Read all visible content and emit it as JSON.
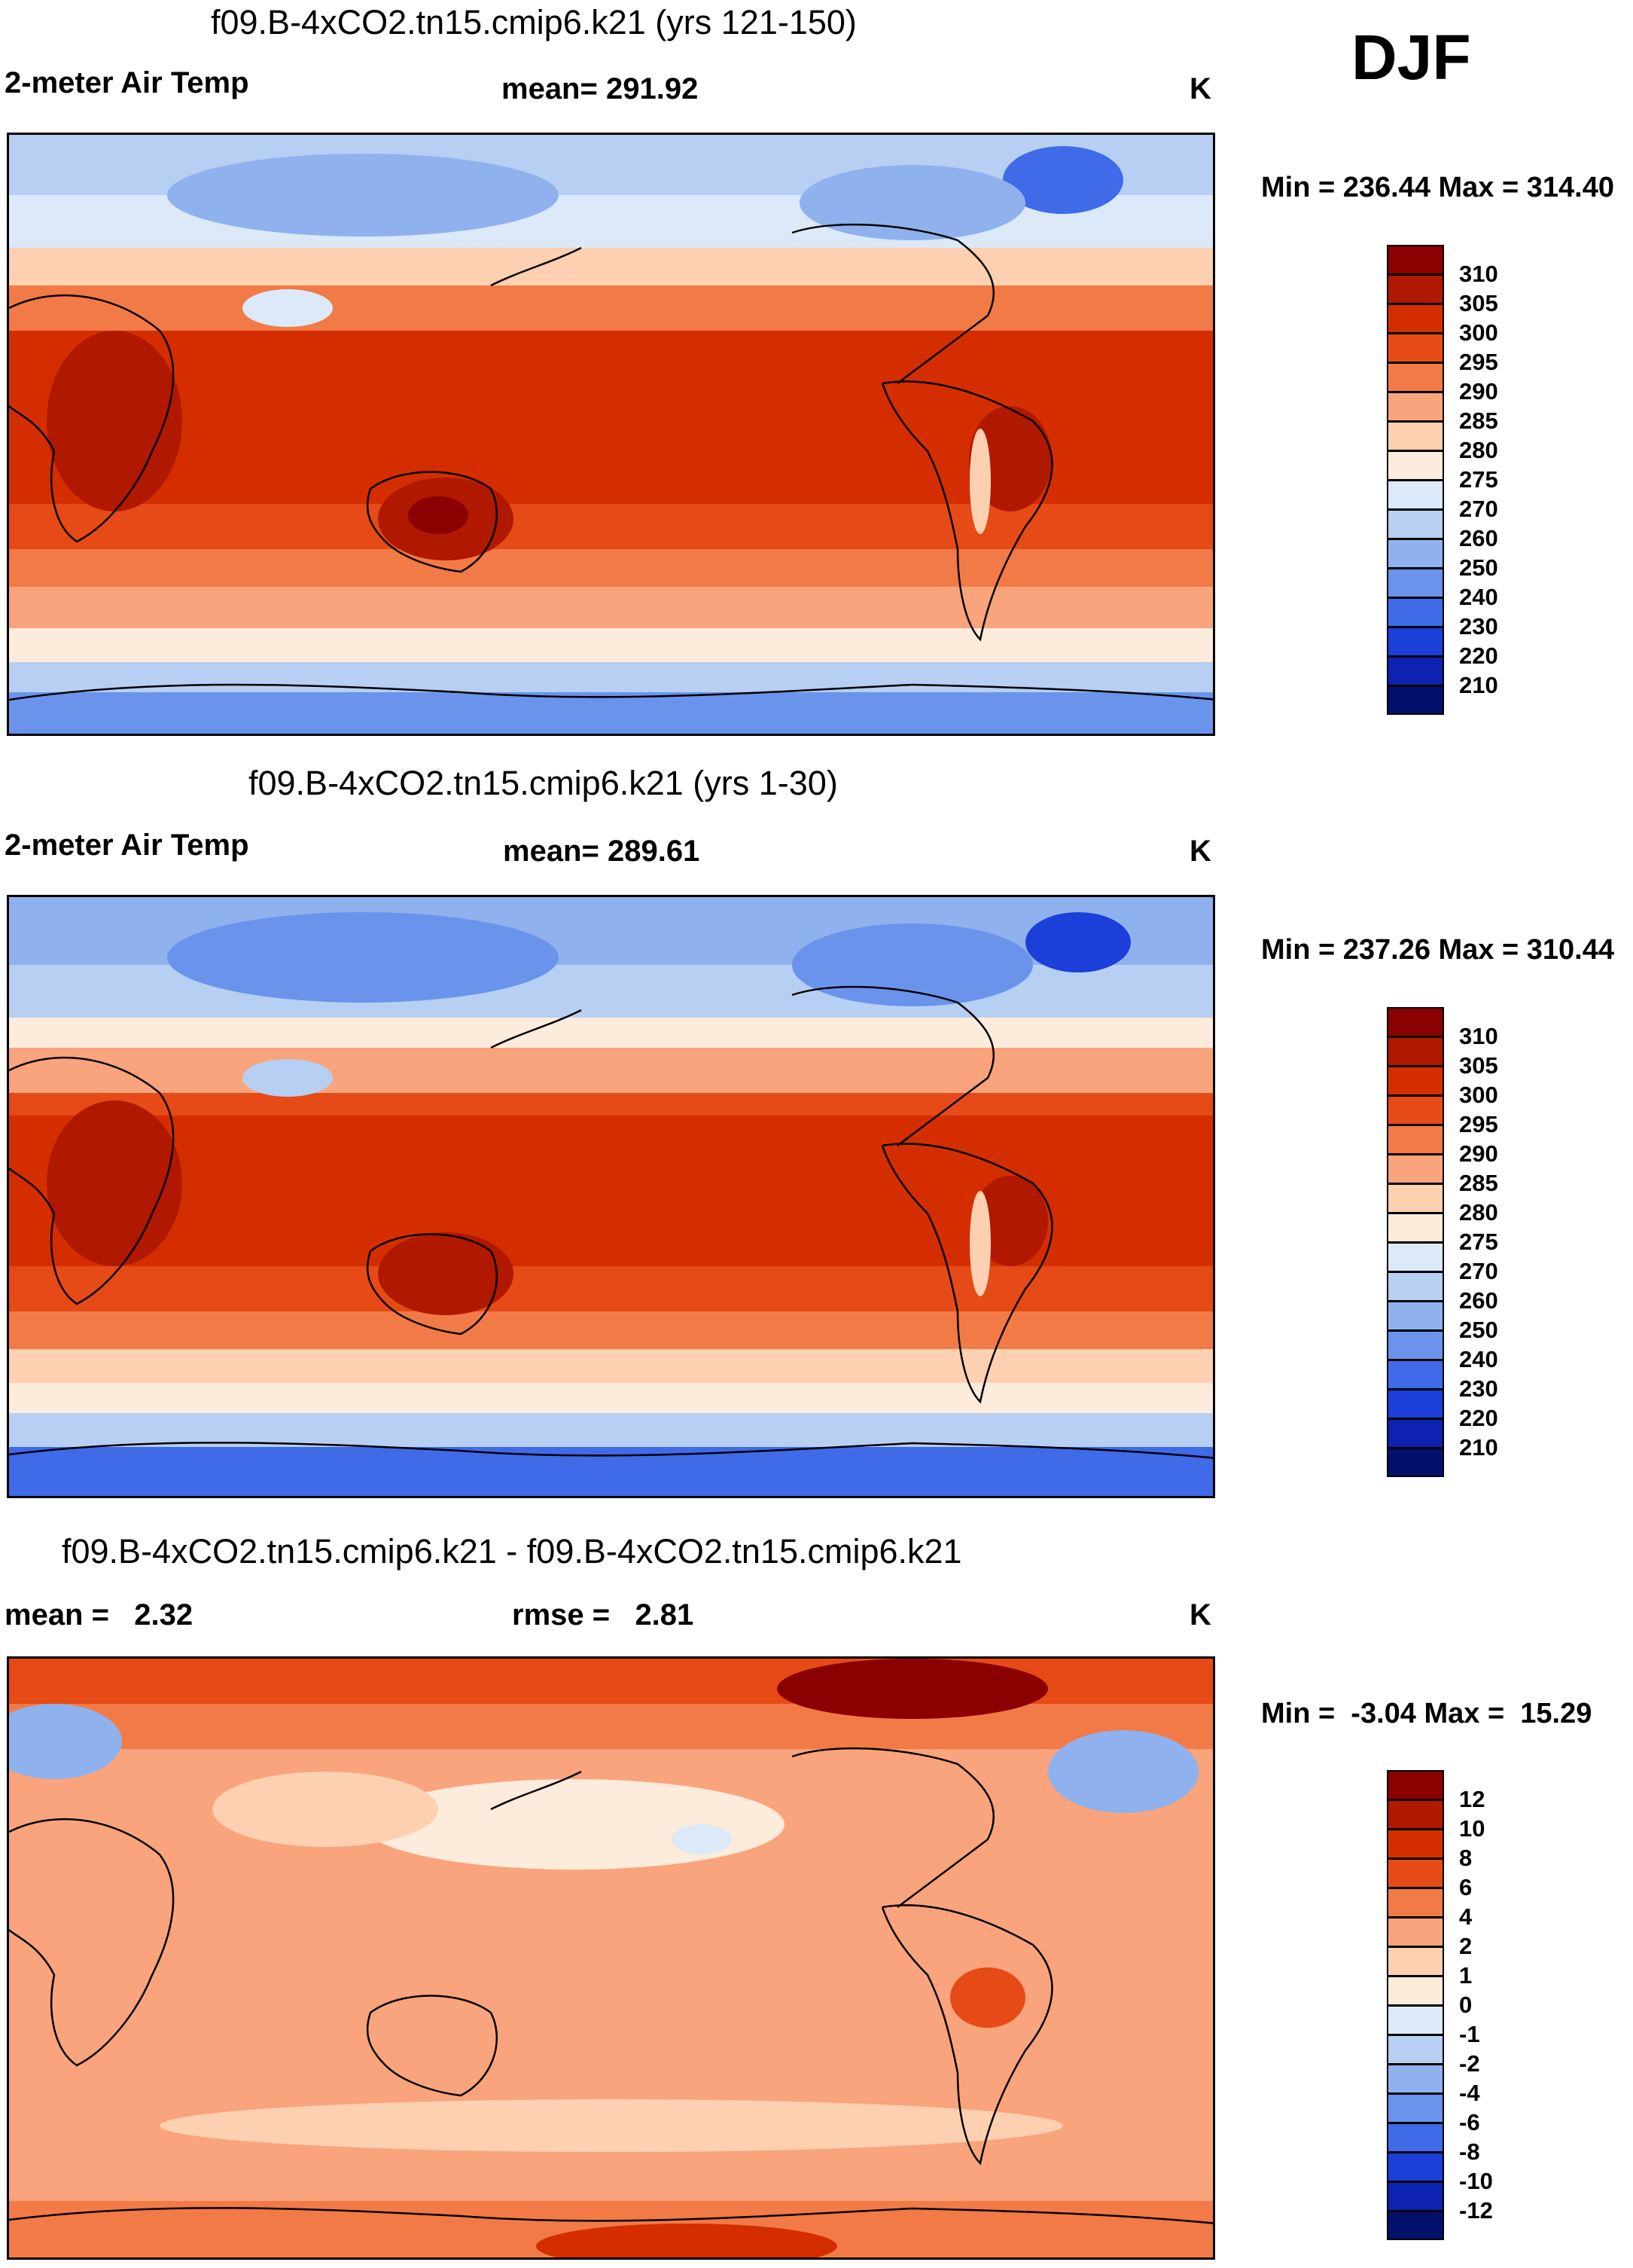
{
  "season": "DJF",
  "panels": [
    {
      "title": "f09.B-4xCO2.tn15.cmip6.k21 (yrs 121-150)",
      "left_label": "2-meter Air Temp",
      "center_label": "mean= 291.92",
      "units": "K",
      "minmax": "Min = 236.44 Max = 314.40",
      "colorbar": {
        "labels": [
          "310",
          "305",
          "300",
          "295",
          "290",
          "285",
          "280",
          "275",
          "270",
          "260",
          "250",
          "240",
          "230",
          "220",
          "210"
        ],
        "colors": [
          "#8b0000",
          "#b01800",
          "#d42e00",
          "#e64a16",
          "#f27a46",
          "#f9a47c",
          "#fcd0b0",
          "#fdebdc",
          "#dbe9f8",
          "#b6cff2",
          "#8fb2ee",
          "#6a94ec",
          "#3f6ae8",
          "#1b3fd8",
          "#0d22b0",
          "#03106b"
        ]
      }
    },
    {
      "title": "f09.B-4xCO2.tn15.cmip6.k21 (yrs 1-30)",
      "left_label": "2-meter Air Temp",
      "center_label": "mean= 289.61",
      "units": "K",
      "minmax": "Min = 237.26 Max = 310.44",
      "colorbar": {
        "labels": [
          "310",
          "305",
          "300",
          "295",
          "290",
          "285",
          "280",
          "275",
          "270",
          "260",
          "250",
          "240",
          "230",
          "220",
          "210"
        ],
        "colors": [
          "#8b0000",
          "#b01800",
          "#d42e00",
          "#e64a16",
          "#f27a46",
          "#f9a47c",
          "#fcd0b0",
          "#fdebdc",
          "#dbe9f8",
          "#b6cff2",
          "#8fb2ee",
          "#6a94ec",
          "#3f6ae8",
          "#1b3fd8",
          "#0d22b0",
          "#03106b"
        ]
      }
    },
    {
      "title": "f09.B-4xCO2.tn15.cmip6.k21 - f09.B-4xCO2.tn15.cmip6.k21",
      "left_label": "mean =   2.32",
      "center_label": "rmse =   2.81",
      "units": "K",
      "minmax": "Min =  -3.04 Max =  15.29",
      "colorbar": {
        "labels": [
          "12",
          "10",
          "8",
          "6",
          "4",
          "2",
          "1",
          "0",
          "-1",
          "-2",
          "-4",
          "-6",
          "-8",
          "-10",
          "-12"
        ],
        "colors": [
          "#8b0000",
          "#b01800",
          "#d42e00",
          "#e64a16",
          "#f27a46",
          "#f9a47c",
          "#fcd0b0",
          "#fdebdc",
          "#dbe9f8",
          "#b6cff2",
          "#8fb2ee",
          "#6a94ec",
          "#3f6ae8",
          "#1b3fd8",
          "#0d22b0",
          "#03106b"
        ]
      }
    }
  ]
}
